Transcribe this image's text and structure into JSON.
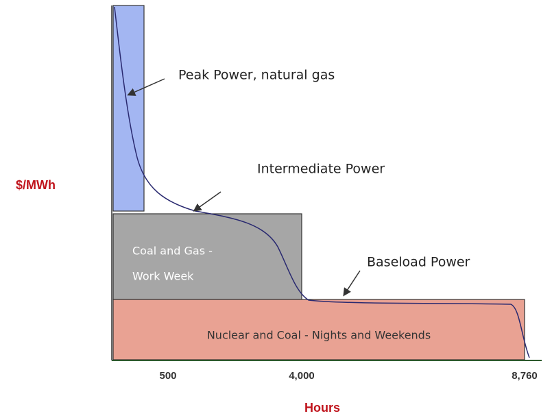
{
  "y_label": "$/MWh",
  "x_label": "Hours",
  "x_ticks": [
    "500",
    "4,000",
    "8,760"
  ],
  "blocks": {
    "intermediate": [
      "Coal and Gas -",
      "Work Week"
    ],
    "baseload": "Nuclear and Coal - Nights and Weekends"
  },
  "annotations": {
    "peak": "Peak Power, natural gas",
    "intermediate": "Intermediate Power",
    "baseload": "Baseload Power"
  }
}
